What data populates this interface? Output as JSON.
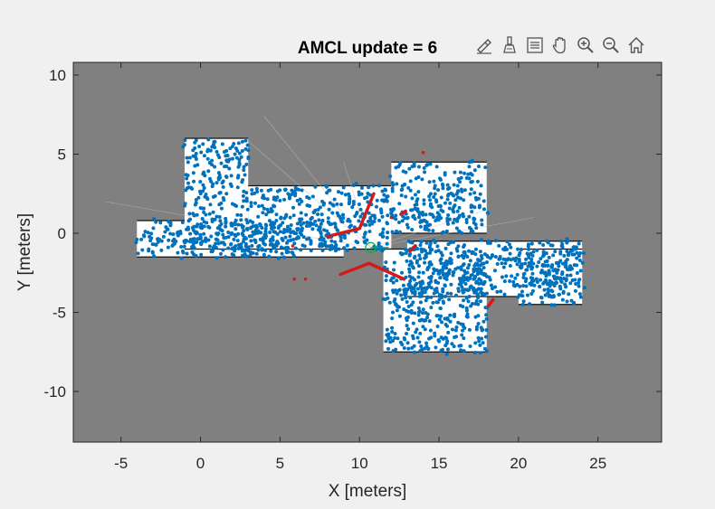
{
  "chart_data": {
    "type": "scatter",
    "title": "AMCL update = 6",
    "xlabel": "X [meters]",
    "ylabel": "Y [meters]",
    "xlim": [
      -8,
      29
    ],
    "ylim": [
      -13.2,
      10.8
    ],
    "xticks": [
      -5,
      0,
      5,
      10,
      15,
      20,
      25
    ],
    "yticks": [
      10,
      5,
      0,
      -5,
      -10
    ],
    "xtick_labels": [
      "-5",
      "0",
      "5",
      "10",
      "15",
      "20",
      "25"
    ],
    "ytick_labels": [
      "10",
      "5",
      "0",
      "-5",
      "-10"
    ],
    "grid": false,
    "map_background": "occupancy-grid",
    "series": [
      {
        "role": "particles",
        "color": "#0072bd",
        "regions": [
          {
            "x0": -4,
            "x1": 9,
            "y0": -1.5,
            "y1": 0.8
          },
          {
            "x0": -1,
            "x1": 3,
            "y0": -1,
            "y1": 6
          },
          {
            "x0": 3,
            "x1": 12,
            "y0": -1,
            "y1": 3
          },
          {
            "x0": 11.5,
            "x1": 18,
            "y0": -7.5,
            "y1": -1
          },
          {
            "x0": 12,
            "x1": 18,
            "y0": 0,
            "y1": 4.5
          },
          {
            "x0": 13,
            "x1": 24,
            "y0": -4,
            "y1": -0.5
          },
          {
            "x0": 20,
            "x1": 24,
            "y0": -4.5,
            "y1": -1
          }
        ]
      },
      {
        "role": "laser-scan",
        "color": "#d11a1a",
        "segments": [
          [
            [
              8,
              -0.2
            ],
            [
              10,
              0.3
            ]
          ],
          [
            [
              10,
              0.3
            ],
            [
              10.9,
              2.5
            ]
          ],
          [
            [
              8.8,
              -2.6
            ],
            [
              10.6,
              -1.9
            ]
          ],
          [
            [
              10.6,
              -1.9
            ],
            [
              12.8,
              -2.9
            ]
          ],
          [
            [
              12.6,
              1.2
            ],
            [
              12.9,
              1.4
            ]
          ],
          [
            [
              13.2,
              -1.1
            ],
            [
              13.5,
              -0.8
            ]
          ],
          [
            [
              18.1,
              -4.6
            ],
            [
              18.4,
              -4.2
            ]
          ]
        ],
        "dots": [
          [
            14,
            5.1
          ],
          [
            6.6,
            -2.9
          ],
          [
            5.9,
            -2.9
          ],
          [
            5.8,
            -0.8
          ],
          [
            12.0,
            1.0
          ]
        ]
      },
      {
        "role": "robot-pose",
        "color": "#00b050",
        "x": 10.7,
        "y": -0.9,
        "heading_deg": 0
      }
    ]
  },
  "toolbar": {
    "buttons": [
      "brush-data",
      "brush-clear",
      "data-tips",
      "pan",
      "zoom-in",
      "zoom-out",
      "restore-view"
    ]
  },
  "colors": {
    "figure_bg": "#f0f0f0",
    "axes_bg": "#808080",
    "free_space": "#ffffff",
    "particles": "#0072bd",
    "scan": "#d11a1a",
    "pose": "#00b050"
  }
}
